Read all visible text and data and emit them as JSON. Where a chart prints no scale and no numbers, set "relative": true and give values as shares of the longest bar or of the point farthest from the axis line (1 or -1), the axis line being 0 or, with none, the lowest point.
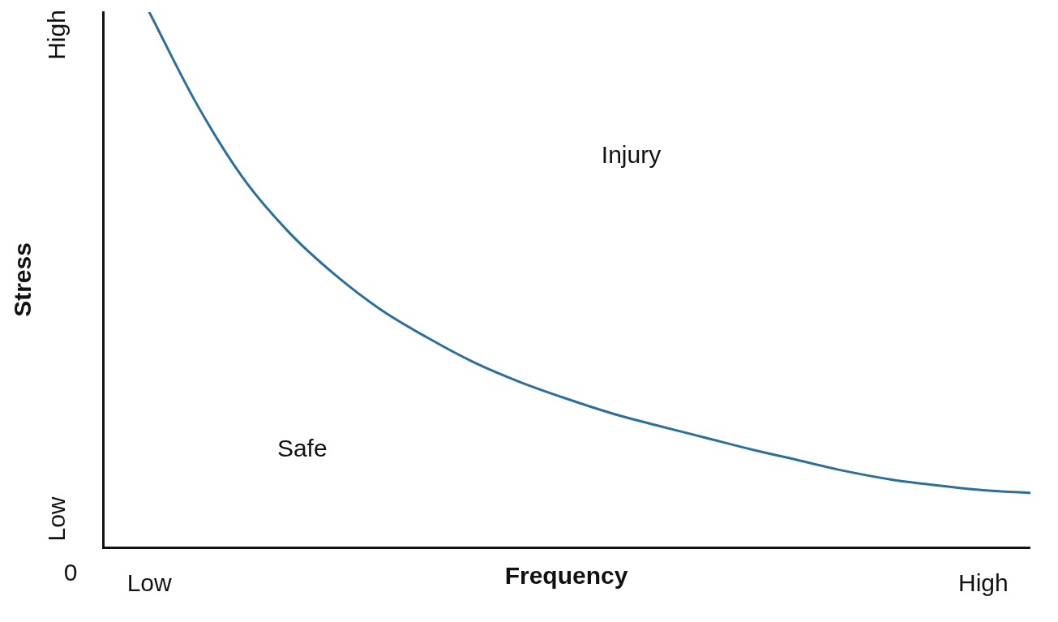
{
  "chart_data": {
    "type": "line",
    "relative": true,
    "xlabel": "Frequency",
    "ylabel": "Stress",
    "categories": [
      null,
      "Low",
      null,
      null,
      null,
      null,
      null,
      null,
      null,
      null,
      null,
      null,
      null,
      null,
      null,
      null,
      null,
      null,
      null,
      "High",
      null
    ],
    "series": [
      {
        "color": "#2b6f9a",
        "values": [
          null,
          1,
          0.832,
          0.693,
          0.59,
          0.51,
          0.444,
          0.392,
          0.346,
          0.309,
          0.278,
          0.25,
          0.227,
          0.205,
          0.183,
          0.163,
          0.143,
          0.127,
          0.116,
          0.107,
          0.102
        ]
      }
    ],
    "annotations": [
      "Injury",
      "Safe",
      "0",
      "Low",
      "High"
    ],
    "grid": false,
    "legend": false,
    "marker": "none",
    "line_style": "solid"
  }
}
